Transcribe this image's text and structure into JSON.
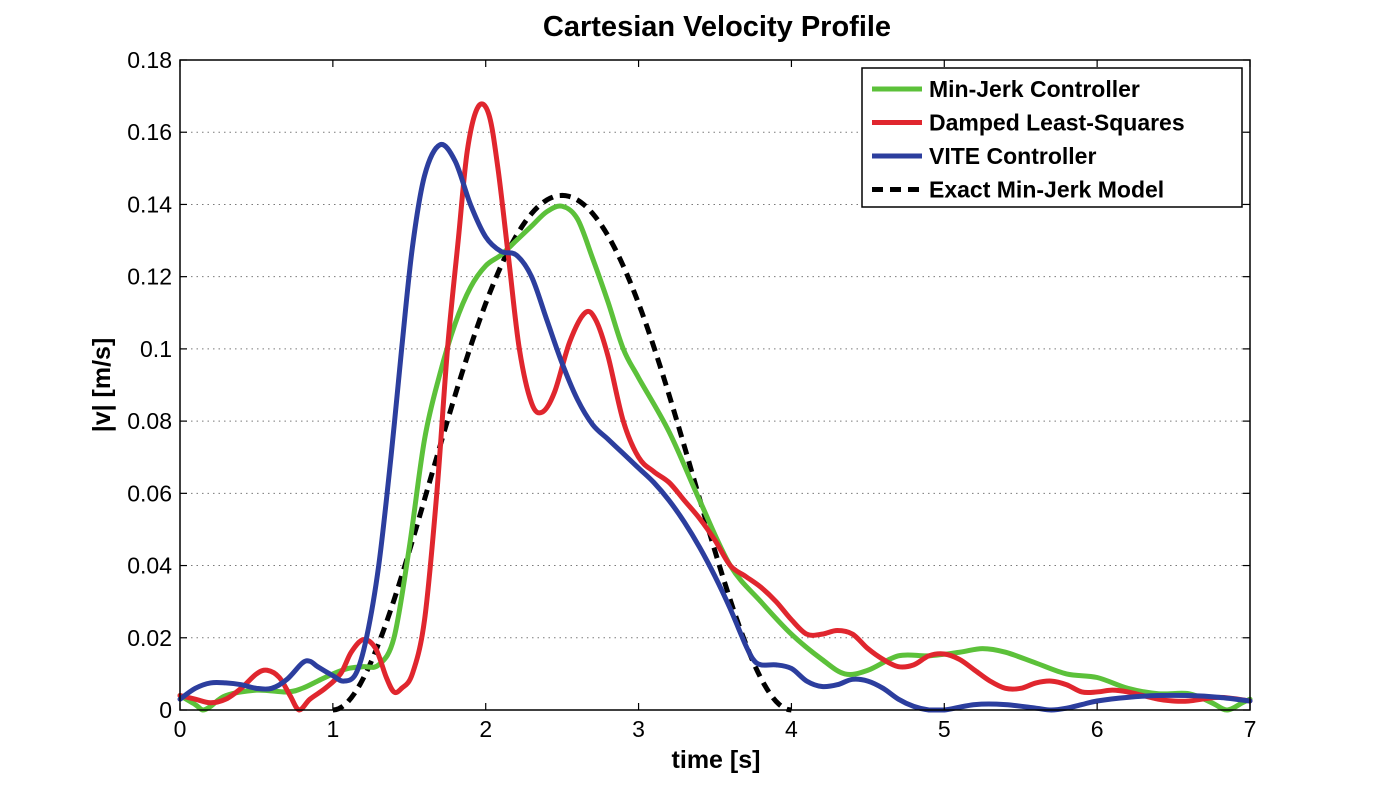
{
  "chart_data": {
    "type": "line",
    "title": "Cartesian Velocity Profile",
    "xlabel": "time [s]",
    "ylabel": "|v| [m/s]",
    "xlim": [
      0,
      7
    ],
    "ylim": [
      0,
      0.18
    ],
    "xticks": [
      0,
      1,
      2,
      3,
      4,
      5,
      6,
      7
    ],
    "xtick_labels": [
      "0",
      "1",
      "2",
      "3",
      "4",
      "5",
      "6",
      "7"
    ],
    "yticks": [
      0,
      0.02,
      0.04,
      0.06,
      0.08,
      0.1,
      0.12,
      0.14,
      0.16,
      0.18
    ],
    "ytick_labels": [
      "0",
      "0.02",
      "0.04",
      "0.06",
      "0.08",
      "0.1",
      "0.12",
      "0.14",
      "0.16",
      "0.18"
    ],
    "grid": "horizontal-dotted",
    "legend_position": "top-right",
    "series": [
      {
        "name": "Min-Jerk Controller",
        "color": "#5cc13a",
        "style": "solid",
        "points": [
          [
            0,
            0.004
          ],
          [
            0.1,
            0.0015
          ],
          [
            0.15,
            0
          ],
          [
            0.2,
            0.001
          ],
          [
            0.3,
            0.004
          ],
          [
            0.5,
            0.0055
          ],
          [
            0.7,
            0.005
          ],
          [
            0.8,
            0.006
          ],
          [
            0.9,
            0.008
          ],
          [
            1.0,
            0.01
          ],
          [
            1.1,
            0.0115
          ],
          [
            1.2,
            0.012
          ],
          [
            1.3,
            0.0125
          ],
          [
            1.4,
            0.02
          ],
          [
            1.5,
            0.045
          ],
          [
            1.6,
            0.075
          ],
          [
            1.7,
            0.093
          ],
          [
            1.8,
            0.107
          ],
          [
            1.9,
            0.117
          ],
          [
            2.0,
            0.123
          ],
          [
            2.1,
            0.126
          ],
          [
            2.2,
            0.13
          ],
          [
            2.3,
            0.134
          ],
          [
            2.4,
            0.138
          ],
          [
            2.5,
            0.1395
          ],
          [
            2.6,
            0.136
          ],
          [
            2.7,
            0.125
          ],
          [
            2.8,
            0.113
          ],
          [
            2.9,
            0.1
          ],
          [
            3.0,
            0.092
          ],
          [
            3.2,
            0.077
          ],
          [
            3.4,
            0.058
          ],
          [
            3.6,
            0.04
          ],
          [
            3.8,
            0.03
          ],
          [
            4.0,
            0.021
          ],
          [
            4.2,
            0.014
          ],
          [
            4.35,
            0.01
          ],
          [
            4.5,
            0.011
          ],
          [
            4.7,
            0.015
          ],
          [
            4.9,
            0.015
          ],
          [
            5.1,
            0.016
          ],
          [
            5.25,
            0.017
          ],
          [
            5.4,
            0.016
          ],
          [
            5.6,
            0.013
          ],
          [
            5.8,
            0.01
          ],
          [
            6.0,
            0.009
          ],
          [
            6.2,
            0.006
          ],
          [
            6.4,
            0.0045
          ],
          [
            6.6,
            0.0045
          ],
          [
            6.75,
            0.002
          ],
          [
            6.85,
            0
          ],
          [
            6.95,
            0.002
          ],
          [
            7.0,
            0.003
          ]
        ]
      },
      {
        "name": "Damped Least-Squares",
        "color": "#e0262e",
        "style": "solid",
        "points": [
          [
            0,
            0.004
          ],
          [
            0.1,
            0.003
          ],
          [
            0.2,
            0.002
          ],
          [
            0.3,
            0.003
          ],
          [
            0.4,
            0.006
          ],
          [
            0.5,
            0.01
          ],
          [
            0.57,
            0.011
          ],
          [
            0.65,
            0.009
          ],
          [
            0.72,
            0.004
          ],
          [
            0.78,
            0
          ],
          [
            0.85,
            0.003
          ],
          [
            0.95,
            0.006
          ],
          [
            1.05,
            0.01
          ],
          [
            1.12,
            0.016
          ],
          [
            1.2,
            0.0195
          ],
          [
            1.28,
            0.017
          ],
          [
            1.35,
            0.009
          ],
          [
            1.4,
            0.005
          ],
          [
            1.45,
            0.006
          ],
          [
            1.52,
            0.01
          ],
          [
            1.6,
            0.025
          ],
          [
            1.68,
            0.06
          ],
          [
            1.75,
            0.1
          ],
          [
            1.82,
            0.13
          ],
          [
            1.88,
            0.155
          ],
          [
            1.95,
            0.167
          ],
          [
            2.02,
            0.165
          ],
          [
            2.08,
            0.15
          ],
          [
            2.15,
            0.125
          ],
          [
            2.22,
            0.1
          ],
          [
            2.3,
            0.085
          ],
          [
            2.37,
            0.0825
          ],
          [
            2.45,
            0.088
          ],
          [
            2.55,
            0.102
          ],
          [
            2.65,
            0.11
          ],
          [
            2.72,
            0.108
          ],
          [
            2.8,
            0.098
          ],
          [
            2.9,
            0.08
          ],
          [
            3.0,
            0.07
          ],
          [
            3.1,
            0.066
          ],
          [
            3.2,
            0.063
          ],
          [
            3.3,
            0.058
          ],
          [
            3.4,
            0.053
          ],
          [
            3.5,
            0.047
          ],
          [
            3.6,
            0.04
          ],
          [
            3.7,
            0.037
          ],
          [
            3.8,
            0.034
          ],
          [
            3.9,
            0.03
          ],
          [
            4.0,
            0.025
          ],
          [
            4.1,
            0.021
          ],
          [
            4.2,
            0.021
          ],
          [
            4.3,
            0.022
          ],
          [
            4.4,
            0.021
          ],
          [
            4.5,
            0.017
          ],
          [
            4.6,
            0.014
          ],
          [
            4.7,
            0.012
          ],
          [
            4.8,
            0.0125
          ],
          [
            4.9,
            0.015
          ],
          [
            5.0,
            0.0155
          ],
          [
            5.1,
            0.014
          ],
          [
            5.2,
            0.011
          ],
          [
            5.3,
            0.008
          ],
          [
            5.4,
            0.006
          ],
          [
            5.5,
            0.006
          ],
          [
            5.6,
            0.0075
          ],
          [
            5.7,
            0.008
          ],
          [
            5.8,
            0.007
          ],
          [
            5.9,
            0.005
          ],
          [
            6.0,
            0.005
          ],
          [
            6.1,
            0.0055
          ],
          [
            6.2,
            0.005
          ],
          [
            6.4,
            0.003
          ],
          [
            6.5,
            0.0025
          ],
          [
            6.6,
            0.0025
          ],
          [
            6.8,
            0.0035
          ],
          [
            7.0,
            0.0025
          ]
        ]
      },
      {
        "name": "VITE Controller",
        "color": "#2c3e9e",
        "style": "solid",
        "points": [
          [
            0,
            0.003
          ],
          [
            0.1,
            0.006
          ],
          [
            0.2,
            0.0075
          ],
          [
            0.3,
            0.0075
          ],
          [
            0.4,
            0.007
          ],
          [
            0.5,
            0.006
          ],
          [
            0.6,
            0.006
          ],
          [
            0.7,
            0.0085
          ],
          [
            0.8,
            0.013
          ],
          [
            0.85,
            0.0135
          ],
          [
            0.9,
            0.012
          ],
          [
            1.0,
            0.0095
          ],
          [
            1.07,
            0.008
          ],
          [
            1.15,
            0.01
          ],
          [
            1.22,
            0.02
          ],
          [
            1.3,
            0.04
          ],
          [
            1.38,
            0.07
          ],
          [
            1.45,
            0.1
          ],
          [
            1.52,
            0.128
          ],
          [
            1.6,
            0.148
          ],
          [
            1.7,
            0.1565
          ],
          [
            1.8,
            0.152
          ],
          [
            1.9,
            0.14
          ],
          [
            2.0,
            0.131
          ],
          [
            2.1,
            0.127
          ],
          [
            2.2,
            0.126
          ],
          [
            2.3,
            0.12
          ],
          [
            2.4,
            0.108
          ],
          [
            2.5,
            0.096
          ],
          [
            2.6,
            0.086
          ],
          [
            2.7,
            0.079
          ],
          [
            2.8,
            0.075
          ],
          [
            2.9,
            0.071
          ],
          [
            3.0,
            0.067
          ],
          [
            3.1,
            0.063
          ],
          [
            3.2,
            0.058
          ],
          [
            3.3,
            0.052
          ],
          [
            3.4,
            0.045
          ],
          [
            3.5,
            0.037
          ],
          [
            3.6,
            0.028
          ],
          [
            3.7,
            0.018
          ],
          [
            3.75,
            0.014
          ],
          [
            3.8,
            0.0125
          ],
          [
            3.9,
            0.0125
          ],
          [
            4.0,
            0.0115
          ],
          [
            4.1,
            0.008
          ],
          [
            4.2,
            0.0065
          ],
          [
            4.3,
            0.007
          ],
          [
            4.4,
            0.0085
          ],
          [
            4.5,
            0.008
          ],
          [
            4.6,
            0.006
          ],
          [
            4.7,
            0.003
          ],
          [
            4.8,
            0.001
          ],
          [
            4.9,
            0
          ],
          [
            5.0,
            0
          ],
          [
            5.2,
            0.0015
          ],
          [
            5.4,
            0.0015
          ],
          [
            5.6,
            0.0005
          ],
          [
            5.7,
            0
          ],
          [
            5.8,
            0.0005
          ],
          [
            5.9,
            0.0015
          ],
          [
            6.0,
            0.0025
          ],
          [
            6.2,
            0.0035
          ],
          [
            6.4,
            0.004
          ],
          [
            6.6,
            0.004
          ],
          [
            6.8,
            0.0035
          ],
          [
            7.0,
            0.0025
          ]
        ]
      },
      {
        "name": "Exact Min-Jerk Model",
        "color": "#000000",
        "style": "dashed",
        "model": {
          "t_start": 1.0,
          "duration": 3.0,
          "peak": 0.1425
        }
      }
    ]
  }
}
